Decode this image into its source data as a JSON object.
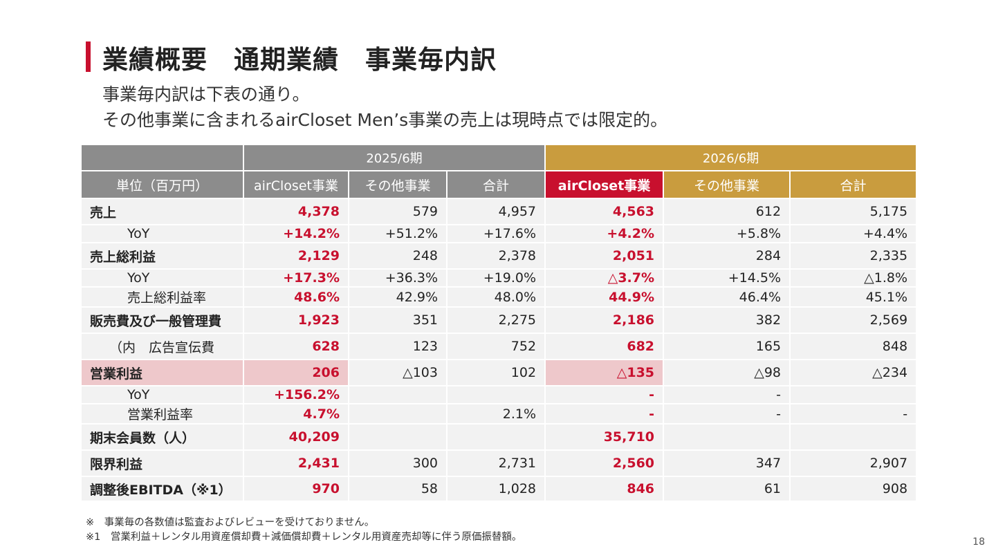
{
  "title": "業績概要　通期業績　事業毎内訳",
  "subtitle": [
    "事業毎内訳は下表の通り。",
    "その他事業に含まれるairCloset Men’s事業の売上は現時点では限定的。"
  ],
  "colors": {
    "accent_red": "#c8102e",
    "gold": "#c99c3e",
    "gray": "#8c8c8c",
    "highlight_pink": "#eec8cb"
  },
  "table": {
    "period_headers": [
      "2025/6期",
      "2026/6期"
    ],
    "unit_label": "単位（百万円）",
    "column_headers": [
      "airCloset事業",
      "その他事業",
      "合計",
      "airCloset事業",
      "その他事業",
      "合計"
    ],
    "rows": [
      {
        "label": "売上",
        "type": "main",
        "values": [
          "4,378",
          "579",
          "4,957",
          "4,563",
          "612",
          "5,175"
        ]
      },
      {
        "label": "YoY",
        "type": "sub",
        "values": [
          "+14.2%",
          "+51.2%",
          "+17.6%",
          "+4.2%",
          "+5.8%",
          "+4.4%"
        ]
      },
      {
        "label": "売上総利益",
        "type": "main",
        "values": [
          "2,129",
          "248",
          "2,378",
          "2,051",
          "284",
          "2,335"
        ]
      },
      {
        "label": "YoY",
        "type": "sub",
        "values": [
          "+17.3%",
          "+36.3%",
          "+19.0%",
          "△3.7%",
          "+14.5%",
          "△1.8%"
        ]
      },
      {
        "label": "売上総利益率",
        "type": "sub",
        "values": [
          "48.6%",
          "42.9%",
          "48.0%",
          "44.9%",
          "46.4%",
          "45.1%"
        ]
      },
      {
        "label": "販売費及び一般管理費",
        "type": "main",
        "values": [
          "1,923",
          "351",
          "2,275",
          "2,186",
          "382",
          "2,569"
        ]
      },
      {
        "label": "（内　広告宣伝費",
        "type": "paren",
        "values": [
          "628",
          "123",
          "752",
          "682",
          "165",
          "848"
        ]
      },
      {
        "label": "営業利益",
        "type": "highlight",
        "values": [
          "206",
          "△103",
          "102",
          "△135",
          "△98",
          "△234"
        ]
      },
      {
        "label": "YoY",
        "type": "sub",
        "values": [
          "+156.2%",
          "",
          "",
          "-",
          "-",
          ""
        ]
      },
      {
        "label": "営業利益率",
        "type": "sub",
        "values": [
          "4.7%",
          "",
          "2.1%",
          "-",
          "-",
          "-"
        ]
      },
      {
        "label": "期末会員数（人）",
        "type": "main",
        "values": [
          "40,209",
          "",
          "",
          "35,710",
          "",
          ""
        ]
      },
      {
        "label": "限界利益",
        "type": "main",
        "values": [
          "2,431",
          "300",
          "2,731",
          "2,560",
          "347",
          "2,907"
        ]
      },
      {
        "label": "調整後EBITDA（※1）",
        "type": "main",
        "values": [
          "970",
          "58",
          "1,028",
          "846",
          "61",
          "908"
        ]
      }
    ]
  },
  "notes": [
    "※　事業毎の各数値は監査およびレビューを受けておりません。",
    "※1　営業利益＋レンタル用資産償却費＋減価償却費＋レンタル用資産売却等に伴う原価振替額。"
  ],
  "page_number": "18"
}
